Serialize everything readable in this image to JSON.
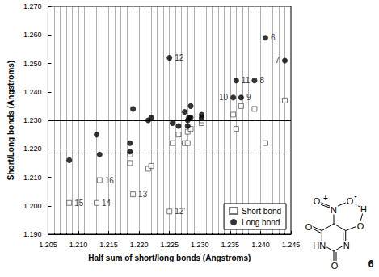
{
  "chart_data": {
    "type": "scatter",
    "x_label": "Half sum of short/long bonds (Angstroms)",
    "y_label": "Short/Long bonds (Angstroms)",
    "xlim": [
      1.205,
      1.245
    ],
    "xticks": [
      1.205,
      {
        "value": 1.21,
        "label": "1.210"
      },
      1.215,
      {
        "value": 1.22,
        "label": "1.220"
      },
      1.225,
      {
        "value": 1.23,
        "label": "1.230"
      },
      1.235,
      {
        "value": 1.24,
        "label": "1.240"
      },
      1.245
    ],
    "ylim": [
      1.19,
      1.27
    ],
    "yticks": [
      {
        "value": 1.19,
        "label": "1.190"
      },
      {
        "value": 1.2,
        "label": "1.200"
      },
      {
        "value": 1.21,
        "label": "1.210"
      },
      {
        "value": 1.22,
        "label": "1.220"
      },
      {
        "value": 1.23,
        "label": "1.230"
      },
      {
        "value": 1.24,
        "label": "1.240"
      },
      {
        "value": 1.25,
        "label": "1.250"
      },
      {
        "value": 1.26,
        "label": "1.260"
      },
      {
        "value": 1.27,
        "label": "1.270"
      }
    ],
    "grid": "x",
    "legend": "lower right",
    "reference_lines": [
      1.2212,
      1.2332
    ],
    "series": [
      {
        "name": "Short bond",
        "color": "#555555",
        "marker": "open_square",
        "x": [
          1.2085,
          1.213,
          1.2135,
          1.2185,
          1.2185,
          1.219,
          1.2215,
          1.222,
          1.225,
          1.2255,
          1.2265,
          1.2275,
          1.228,
          1.228,
          1.2285,
          1.2303,
          1.2303,
          1.2355,
          1.236,
          1.2368,
          1.239,
          1.2408,
          1.244
        ],
        "values": [
          1.201,
          1.201,
          1.209,
          1.215,
          1.218,
          1.204,
          1.213,
          1.214,
          1.198,
          1.222,
          1.225,
          1.222,
          1.226,
          1.222,
          1.227,
          1.229,
          1.23,
          1.232,
          1.227,
          1.235,
          1.234,
          1.222,
          1.237
        ],
        "labels": [
          "15",
          "14",
          "16",
          null,
          null,
          "13",
          null,
          null,
          "12'",
          null,
          null,
          null,
          null,
          null,
          null,
          null,
          null,
          null,
          null,
          null,
          null,
          null,
          null
        ]
      },
      {
        "name": "Long bond",
        "color": "#000000",
        "marker": "circle",
        "x": [
          1.2085,
          1.213,
          1.2135,
          1.2185,
          1.2185,
          1.219,
          1.2215,
          1.222,
          1.225,
          1.2255,
          1.2265,
          1.2275,
          1.228,
          1.228,
          1.2282,
          1.2285,
          1.2285,
          1.2303,
          1.2303,
          1.2355,
          1.236,
          1.2368,
          1.239,
          1.2408,
          1.244
        ],
        "values": [
          1.216,
          1.225,
          1.218,
          1.222,
          1.219,
          1.234,
          1.23,
          1.231,
          1.252,
          1.229,
          1.228,
          1.233,
          1.23,
          1.228,
          1.231,
          1.235,
          1.231,
          1.232,
          1.231,
          1.238,
          1.244,
          1.238,
          1.244,
          1.259,
          1.251
        ],
        "labels": [
          null,
          null,
          null,
          null,
          null,
          null,
          null,
          null,
          "12",
          null,
          null,
          null,
          null,
          null,
          null,
          null,
          null,
          null,
          null,
          "10",
          "11",
          "9",
          "8",
          "6",
          "7"
        ]
      }
    ],
    "structure": {
      "label": "6",
      "atoms": [
        "O",
        "+",
        "N",
        "O",
        "-",
        "H",
        "O",
        "O",
        "HN",
        "N",
        "O"
      ]
    }
  }
}
